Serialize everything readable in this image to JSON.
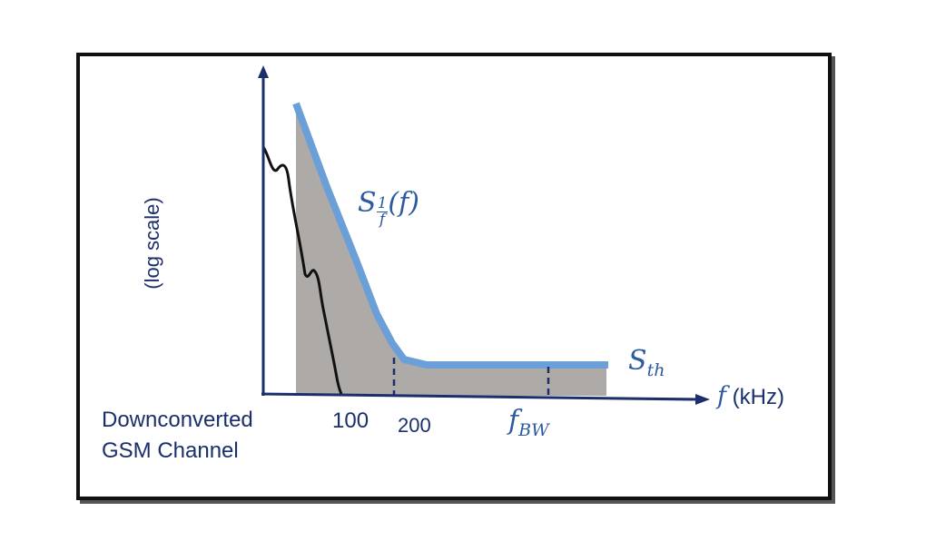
{
  "ylabel": "(log scale)",
  "xlabel_var": "f",
  "xlabel_unit": "(kHz)",
  "tick_100": "100",
  "tick_200": "200",
  "tick_fbw_main": "f",
  "tick_fbw_sub": "BW",
  "curve_label_main": "S",
  "curve_label_sub": "1",
  "curve_label_frac_den": "f",
  "curve_label_arg": "(f)",
  "flat_label_main": "S",
  "flat_label_sub": "th",
  "gsm_label_line1": "Downconverted",
  "gsm_label_line2": "GSM Channel",
  "colors": {
    "axis": "#1a2f6b",
    "curve": "#6a9fd8",
    "fill": "#aeaaa8",
    "gsm": "#111111",
    "frame": "#111111"
  }
}
